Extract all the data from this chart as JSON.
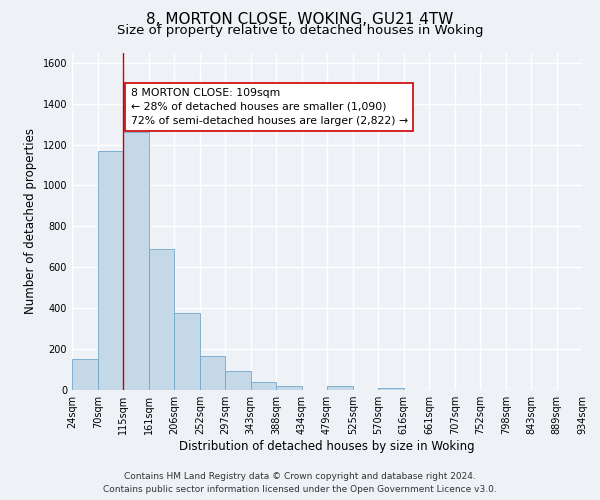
{
  "title": "8, MORTON CLOSE, WOKING, GU21 4TW",
  "subtitle": "Size of property relative to detached houses in Woking",
  "xlabel": "Distribution of detached houses by size in Woking",
  "ylabel": "Number of detached properties",
  "bin_edges": [
    24,
    70,
    115,
    161,
    206,
    252,
    297,
    343,
    388,
    434,
    479,
    525,
    570,
    616,
    661,
    707,
    752,
    798,
    843,
    889,
    934
  ],
  "bar_heights": [
    150,
    1170,
    1260,
    690,
    375,
    165,
    92,
    37,
    22,
    0,
    18,
    0,
    10,
    0,
    0,
    0,
    0,
    0,
    0,
    0
  ],
  "bar_color": "#c5d8e8",
  "bar_edgecolor": "#6fa8c8",
  "property_line_x": 115,
  "property_line_color": "#cc0000",
  "annotation_box_text": "8 MORTON CLOSE: 109sqm\n← 28% of detached houses are smaller (1,090)\n72% of semi-detached houses are larger (2,822) →",
  "ylim": [
    0,
    1650
  ],
  "yticks": [
    0,
    200,
    400,
    600,
    800,
    1000,
    1200,
    1400,
    1600
  ],
  "tick_labels": [
    "24sqm",
    "70sqm",
    "115sqm",
    "161sqm",
    "206sqm",
    "252sqm",
    "297sqm",
    "343sqm",
    "388sqm",
    "434sqm",
    "479sqm",
    "525sqm",
    "570sqm",
    "616sqm",
    "661sqm",
    "707sqm",
    "752sqm",
    "798sqm",
    "843sqm",
    "889sqm",
    "934sqm"
  ],
  "footer_line1": "Contains HM Land Registry data © Crown copyright and database right 2024.",
  "footer_line2": "Contains public sector information licensed under the Open Government Licence v3.0.",
  "background_color": "#eef2f7",
  "grid_color": "#ffffff",
  "title_fontsize": 11,
  "subtitle_fontsize": 9.5,
  "axis_label_fontsize": 8.5,
  "tick_fontsize": 7,
  "footer_fontsize": 6.5,
  "annot_fontsize": 7.8
}
